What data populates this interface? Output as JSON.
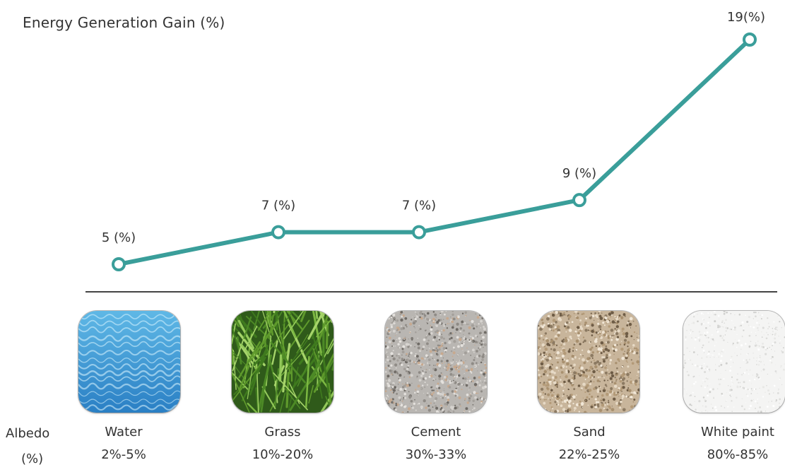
{
  "chart_data": {
    "type": "line",
    "title": "Energy Generation Gain (%)",
    "categories": [
      "Water",
      "Grass",
      "Cement",
      "Sand",
      "White paint"
    ],
    "series": [
      {
        "values": [
          5,
          7,
          7,
          9,
          19
        ],
        "data_labels": [
          "5 (%)",
          "7 (%)",
          "7 (%)",
          "9 (%)",
          "19(%)"
        ]
      }
    ],
    "albedo": [
      "2%-5%",
      "10%-20%",
      "30%-33%",
      "22%-25%",
      "80%-85%"
    ],
    "albedo_label": [
      "Albedo",
      "(%)"
    ],
    "line_color": "#3a9e9a",
    "tile_textures": [
      "water",
      "grass",
      "cement",
      "sand",
      "white-paint"
    ],
    "grid": false,
    "legend": "none"
  }
}
